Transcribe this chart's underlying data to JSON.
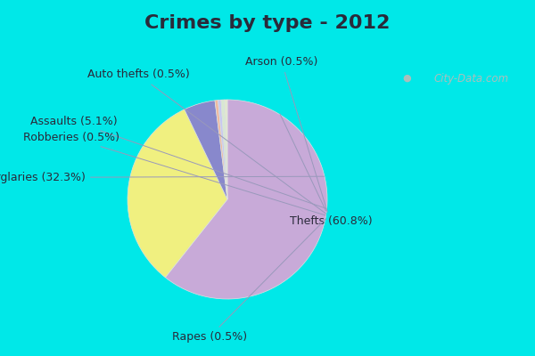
{
  "title": "Crimes by type - 2012",
  "labels": [
    "Thefts",
    "Burglaries",
    "Assaults",
    "Arson",
    "Auto thefts",
    "Robberies",
    "Rapes"
  ],
  "values": [
    60.8,
    32.3,
    5.1,
    0.5,
    0.5,
    0.5,
    0.5
  ],
  "colors": [
    "#c8aad8",
    "#f0f080",
    "#8888cc",
    "#f0b8a0",
    "#c8c8f0",
    "#d8e8d0",
    "#e0e8d0"
  ],
  "background_top_color": "#00e8e8",
  "background_main_color": "#d8ede4",
  "title_fontsize": 16,
  "label_fontsize": 9,
  "title_color": "#2a2a3a",
  "watermark_text": "City-Data.com",
  "watermark_color": "#aabfbc"
}
